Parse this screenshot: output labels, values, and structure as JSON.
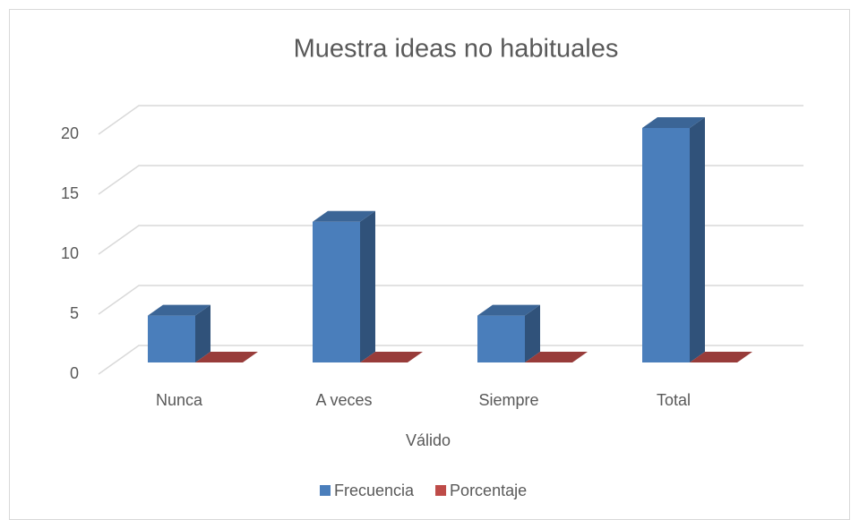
{
  "chart_data": {
    "type": "bar3d",
    "title": "Muestra ideas no habituales",
    "x_label": "Válido",
    "categories": [
      "Nunca",
      "A veces",
      "Siempre",
      "Total"
    ],
    "series": [
      {
        "name": "Frecuencia",
        "color": "#4a7ebb",
        "values": [
          4,
          12,
          4,
          20
        ]
      },
      {
        "name": "Porcentaje",
        "color": "#be4b48",
        "values": [
          0,
          0,
          0,
          0
        ]
      }
    ],
    "ylim": [
      0,
      20
    ],
    "yticks": [
      0,
      5,
      10,
      15,
      20
    ],
    "grid": true,
    "legend": "bottom"
  }
}
